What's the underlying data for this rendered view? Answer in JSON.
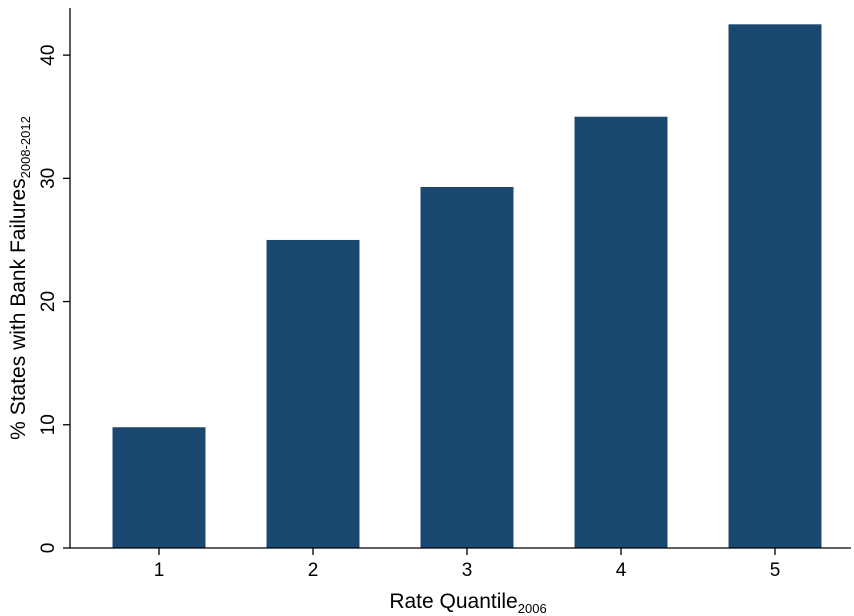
{
  "chart_data": {
    "type": "bar",
    "categories": [
      "1",
      "2",
      "3",
      "4",
      "5"
    ],
    "values": [
      9.8,
      25.0,
      29.3,
      35.0,
      42.5
    ],
    "xlabel": "Rate Quantile",
    "xlabel_subscript": "2006",
    "ylabel": "% States with Bank Failures",
    "ylabel_subscript": "2008-2012",
    "yticks": [
      "0",
      "10",
      "20",
      "30",
      "40"
    ],
    "ylim": [
      0,
      43.5
    ],
    "grid": false,
    "bar_color": "#1b4870"
  }
}
